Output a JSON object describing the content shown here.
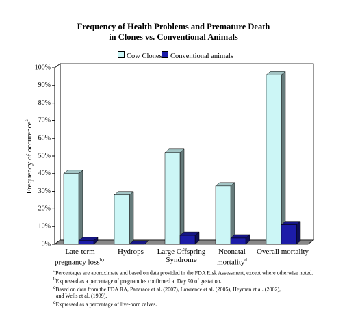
{
  "chart_data": {
    "type": "bar3d",
    "title": [
      "Frequency of Health Problems and Premature Death",
      "in Clones vs. Conventional Animals"
    ],
    "y_label": "Frequency of occurence",
    "y_label_note": "a",
    "categories": [
      "Late-term pregnancy loss",
      "Hydrops",
      "Large Offspring Syndrome",
      "Neonatal mortality",
      "Overall mortality"
    ],
    "category_notes": [
      "b,c",
      null,
      null,
      "d",
      null
    ],
    "series": [
      {
        "name": "Cow Clones",
        "color": "#ccf6f6",
        "values": [
          40,
          28,
          52,
          33,
          96
        ]
      },
      {
        "name": "Conventional animals",
        "color": "#1c1ca8",
        "values": [
          2,
          0,
          5,
          3.5,
          11
        ]
      }
    ],
    "ylim": [
      0,
      100
    ],
    "yticks": [
      {
        "value": 0,
        "label": "0%"
      },
      {
        "value": 10,
        "label": "10%"
      },
      {
        "value": 20,
        "label": "20%"
      },
      {
        "value": 30,
        "label": "30%"
      },
      {
        "value": 40,
        "label": "40%"
      },
      {
        "value": 50,
        "label": "50%"
      },
      {
        "value": 60,
        "label": "60%"
      },
      {
        "value": 70,
        "label": "70%"
      },
      {
        "value": 80,
        "label": "80%"
      },
      {
        "value": 90,
        "label": "90%"
      },
      {
        "value": 100,
        "label": "100%"
      }
    ],
    "footnotes": [
      {
        "mark": "a",
        "lines": [
          "Percentages are approximate and based on data provided in the FDA Risk Assessment, except where otherwise noted."
        ]
      },
      {
        "mark": "b",
        "lines": [
          "Expressed as a percentage of pregnancies confirmed at Day 90 of gestation."
        ]
      },
      {
        "mark": "c",
        "lines": [
          "Based on data from the FDA RA, Panarace et al. (2007), Lawrence et al. (2005), Heyman et al. (2002),",
          "and Wells et al. (1999)."
        ]
      },
      {
        "mark": "d",
        "lines": [
          "Expressed as a percentage of live-born calves."
        ]
      }
    ]
  }
}
